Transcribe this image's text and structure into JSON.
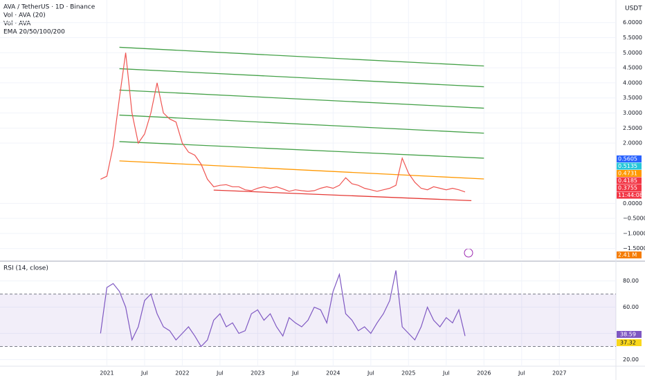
{
  "header": {
    "symbol": "AVA / TetherUS · 1D · Binance",
    "indicators": [
      "Vol · AVA (20)",
      "Vol · AVA",
      "EMA 20/50/100/200"
    ],
    "currency": "USDT"
  },
  "chart_data": [
    {
      "type": "line",
      "x": [
        "2020-12",
        "2021-01",
        "2021-02",
        "2021-03",
        "2021-04",
        "2021-05",
        "2021-06",
        "2021-07",
        "2021-08",
        "2021-09",
        "2021-10",
        "2021-11",
        "2021-12",
        "2022-01",
        "2022-02",
        "2022-03",
        "2022-04",
        "2022-05",
        "2022-06",
        "2022-07",
        "2022-08",
        "2022-09",
        "2022-10",
        "2022-11",
        "2022-12",
        "2023-01",
        "2023-02",
        "2023-03",
        "2023-04",
        "2023-05",
        "2023-06",
        "2023-07",
        "2023-08",
        "2023-09",
        "2023-10",
        "2023-11",
        "2023-12",
        "2024-01",
        "2024-02",
        "2024-03",
        "2024-04",
        "2024-05",
        "2024-06",
        "2024-07",
        "2024-08",
        "2024-09",
        "2024-10",
        "2024-11",
        "2024-12",
        "2025-01",
        "2025-02",
        "2025-03",
        "2025-04",
        "2025-05",
        "2025-06",
        "2025-07",
        "2025-08",
        "2025-09",
        "2025-10"
      ],
      "series": [
        {
          "color": "#ef5350",
          "values": [
            0.8,
            0.9,
            1.9,
            3.5,
            5.0,
            3.0,
            2.0,
            2.3,
            3.0,
            4.0,
            3.0,
            2.8,
            2.7,
            2.0,
            1.7,
            1.6,
            1.3,
            0.8,
            0.55,
            0.6,
            0.62,
            0.55,
            0.55,
            0.45,
            0.42,
            0.5,
            0.55,
            0.5,
            0.55,
            0.48,
            0.4,
            0.45,
            0.42,
            0.4,
            0.42,
            0.5,
            0.55,
            0.5,
            0.6,
            0.85,
            0.65,
            0.6,
            0.5,
            0.45,
            0.4,
            0.45,
            0.5,
            0.6,
            1.5,
            1.0,
            0.7,
            0.5,
            0.45,
            0.55,
            0.5,
            0.45,
            0.5,
            0.45,
            0.38
          ]
        }
      ],
      "trend_lines": [
        {
          "color": "#43a047",
          "x": [
            "2021-03",
            "2026-01"
          ],
          "values": [
            5.18,
            4.56
          ]
        },
        {
          "color": "#43a047",
          "x": [
            "2021-03",
            "2026-01"
          ],
          "values": [
            4.47,
            3.87
          ]
        },
        {
          "color": "#43a047",
          "x": [
            "2021-03",
            "2026-01"
          ],
          "values": [
            3.76,
            3.16
          ]
        },
        {
          "color": "#43a047",
          "x": [
            "2021-03",
            "2026-01"
          ],
          "values": [
            2.93,
            2.33
          ]
        },
        {
          "color": "#43a047",
          "x": [
            "2021-03",
            "2026-01"
          ],
          "values": [
            2.05,
            1.5
          ]
        },
        {
          "color": "#ff9800",
          "x": [
            "2021-03",
            "2026-01"
          ],
          "values": [
            1.41,
            0.81
          ]
        },
        {
          "color": "#e53935",
          "x": [
            "2022-06",
            "2025-11"
          ],
          "values": [
            0.44,
            0.09
          ]
        }
      ],
      "xlim": [
        "2019-08",
        "2027-10"
      ],
      "ylim": [
        -1.85,
        6.75
      ],
      "yticks": [
        {
          "value": 6,
          "label": "6.0000"
        },
        {
          "value": 5.5,
          "label": "5.5000"
        },
        {
          "value": 5,
          "label": "5.0000"
        },
        {
          "value": 4.5,
          "label": "4.5000"
        },
        {
          "value": 4,
          "label": "4.0000"
        },
        {
          "value": 3.5,
          "label": "3.5000"
        },
        {
          "value": 3,
          "label": "3.0000"
        },
        {
          "value": 2.5,
          "label": "2.5000"
        },
        {
          "value": 2,
          "label": "2.0000"
        },
        {
          "value": 0,
          "label": "0.0000"
        },
        {
          "value": -0.5,
          "label": "−0.5000"
        },
        {
          "value": -1,
          "label": "−1.0000"
        },
        {
          "value": -1.5,
          "label": "−1.5000"
        }
      ],
      "price_labels": [
        {
          "value": 0.5605,
          "color": "#2962ff"
        },
        {
          "value": 0.5135,
          "color": "#26c6da"
        },
        {
          "value": 0.4731,
          "color": "#ff9800"
        },
        {
          "value": 0.4185,
          "color": "#f23645"
        },
        {
          "value": 0.3755,
          "color": "#f23645"
        },
        {
          "value": "11:44:08",
          "color": "#f23645"
        }
      ],
      "volume_label": {
        "label": "2.41 M",
        "color": "#f57c00"
      }
    },
    {
      "type": "line",
      "title": "RSI (14, close)",
      "x": [
        "2020-12",
        "2021-01",
        "2021-02",
        "2021-03",
        "2021-04",
        "2021-05",
        "2021-06",
        "2021-07",
        "2021-08",
        "2021-09",
        "2021-10",
        "2021-11",
        "2021-12",
        "2022-01",
        "2022-02",
        "2022-03",
        "2022-04",
        "2022-05",
        "2022-06",
        "2022-07",
        "2022-08",
        "2022-09",
        "2022-10",
        "2022-11",
        "2022-12",
        "2023-01",
        "2023-02",
        "2023-03",
        "2023-04",
        "2023-05",
        "2023-06",
        "2023-07",
        "2023-08",
        "2023-09",
        "2023-10",
        "2023-11",
        "2023-12",
        "2024-01",
        "2024-02",
        "2024-03",
        "2024-04",
        "2024-05",
        "2024-06",
        "2024-07",
        "2024-08",
        "2024-09",
        "2024-10",
        "2024-11",
        "2024-12",
        "2025-01",
        "2025-02",
        "2025-03",
        "2025-04",
        "2025-05",
        "2025-06",
        "2025-07",
        "2025-08",
        "2025-09",
        "2025-10"
      ],
      "series": [
        {
          "color": "#7e57c2",
          "values": [
            40,
            75,
            78,
            72,
            60,
            35,
            45,
            65,
            70,
            55,
            45,
            42,
            35,
            40,
            45,
            38,
            30,
            35,
            50,
            55,
            45,
            48,
            40,
            42,
            55,
            58,
            50,
            55,
            45,
            38,
            52,
            48,
            45,
            50,
            60,
            58,
            48,
            72,
            85,
            55,
            50,
            42,
            45,
            40,
            48,
            55,
            65,
            88,
            45,
            40,
            35,
            45,
            60,
            50,
            45,
            52,
            48,
            58,
            38
          ]
        }
      ],
      "band": [
        30,
        70
      ],
      "ylim": [
        15,
        94
      ],
      "yticks": [
        {
          "value": 80,
          "label": "80.00"
        },
        {
          "value": 60,
          "label": "60.00"
        },
        {
          "value": 40,
          "label": "40.00"
        },
        {
          "value": 20,
          "label": "20.00"
        }
      ],
      "value_tags": [
        {
          "value": 38.59,
          "label": "38.59",
          "color": "#7e57c2"
        },
        {
          "value": 37.32,
          "label": "37.32",
          "color": "#f9d71c"
        }
      ],
      "xlim": [
        "2019-08",
        "2027-10"
      ],
      "xticks": [
        {
          "value": "2021-01",
          "label": "2021"
        },
        {
          "value": "2021-07",
          "label": "Jul"
        },
        {
          "value": "2022-01",
          "label": "2022"
        },
        {
          "value": "2022-07",
          "label": "Jul"
        },
        {
          "value": "2023-01",
          "label": "2023"
        },
        {
          "value": "2023-07",
          "label": "Jul"
        },
        {
          "value": "2024-01",
          "label": "2024"
        },
        {
          "value": "2024-07",
          "label": "Jul"
        },
        {
          "value": "2025-01",
          "label": "2025"
        },
        {
          "value": "2025-07",
          "label": "Jul"
        },
        {
          "value": "2026-01",
          "label": "2026"
        },
        {
          "value": "2026-07",
          "label": "Jul"
        },
        {
          "value": "2027-01",
          "label": "2027"
        }
      ]
    }
  ]
}
